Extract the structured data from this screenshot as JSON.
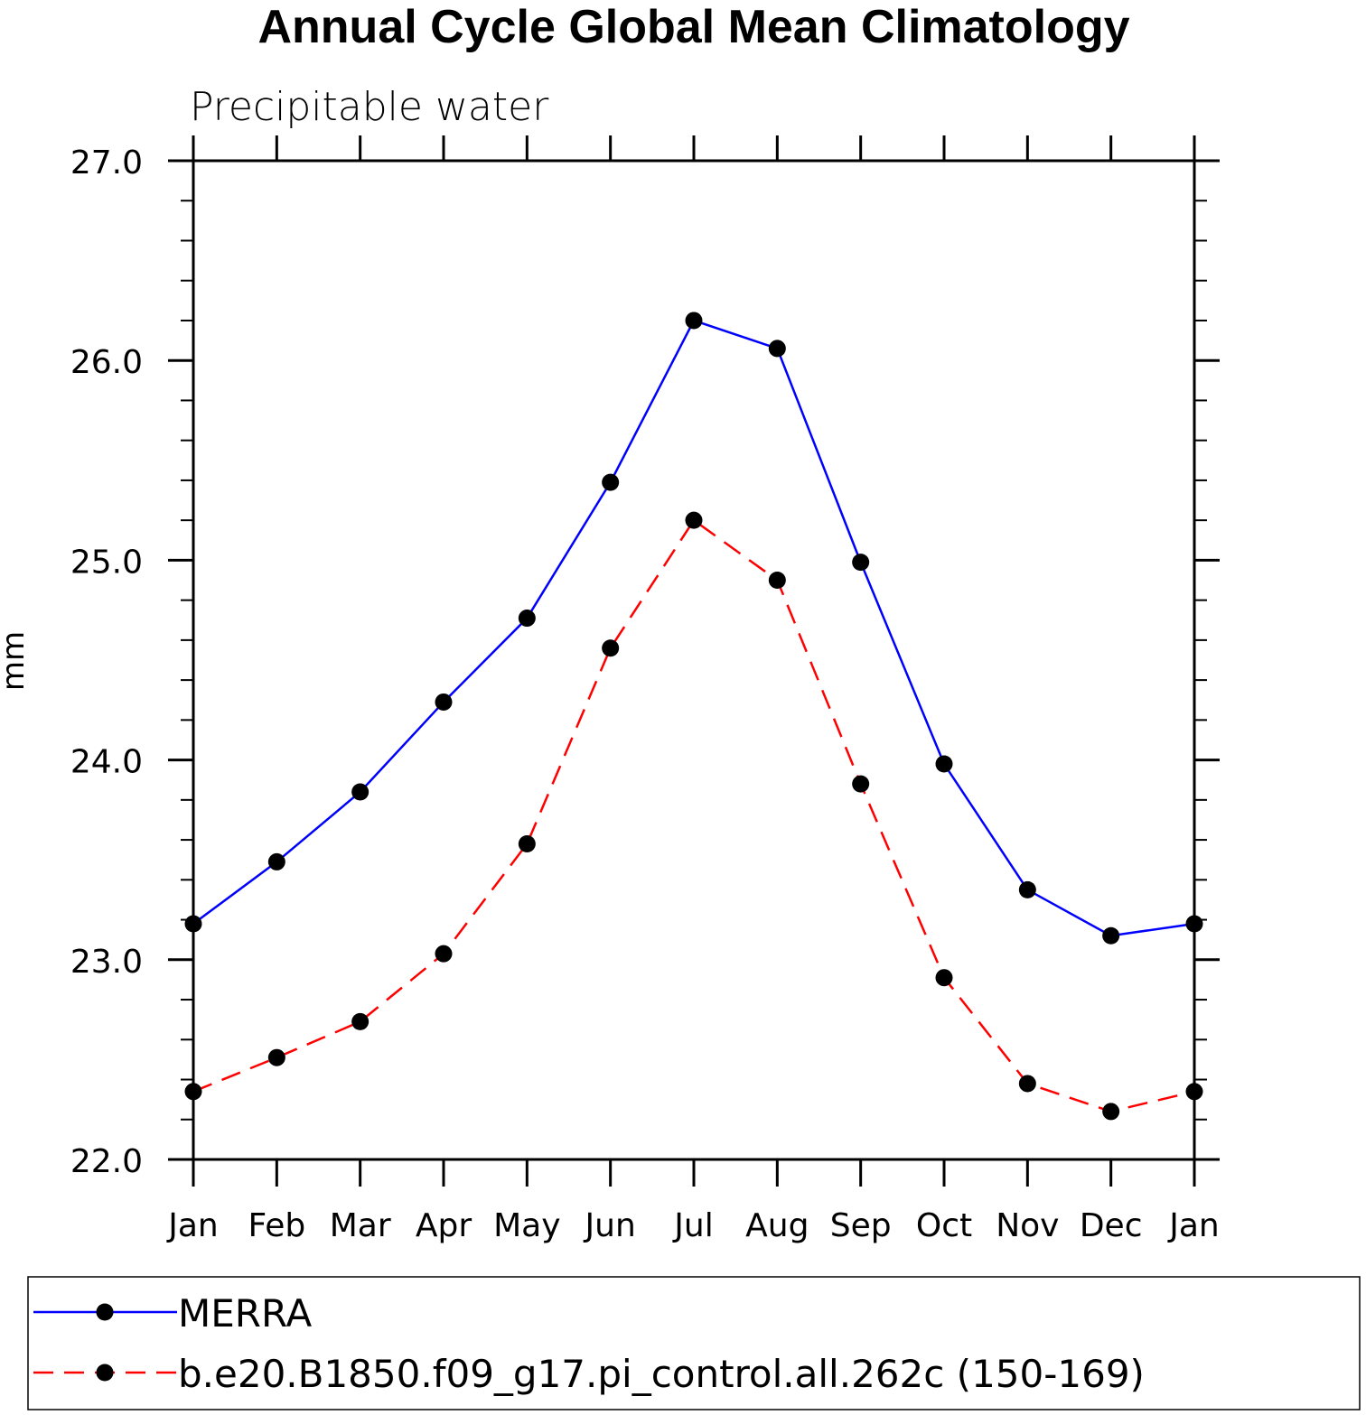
{
  "chart_data": {
    "type": "line",
    "title": "Annual Cycle Global Mean Climatology",
    "subtitle": "Precipitable water",
    "xlabel": "",
    "ylabel": "mm",
    "categories": [
      "Jan",
      "Feb",
      "Mar",
      "Apr",
      "May",
      "Jun",
      "Jul",
      "Aug",
      "Sep",
      "Oct",
      "Nov",
      "Dec",
      "Jan"
    ],
    "ylim": [
      22.0,
      27.0
    ],
    "yticks": [
      22.0,
      23.0,
      24.0,
      25.0,
      26.0,
      27.0
    ],
    "ytick_labels": [
      "22.0",
      "23.0",
      "24.0",
      "25.0",
      "26.0",
      "27.0"
    ],
    "y_minor_step": 0.2,
    "grid": false,
    "legend_position": "bottom",
    "series": [
      {
        "name": "MERRA",
        "color": "#0000ff",
        "dash": "solid",
        "marker": "circle",
        "values": [
          23.18,
          23.49,
          23.84,
          24.29,
          24.71,
          25.39,
          26.2,
          26.06,
          24.99,
          23.98,
          23.35,
          23.12,
          23.18
        ]
      },
      {
        "name": "b.e20.B1850.f09_g17.pi_control.all.262c (150-169)",
        "color": "#ff0000",
        "dash": "dashed",
        "marker": "circle",
        "values": [
          22.34,
          22.51,
          22.69,
          23.03,
          23.58,
          24.56,
          25.2,
          24.9,
          23.88,
          22.91,
          22.38,
          22.24,
          22.34
        ]
      }
    ]
  }
}
